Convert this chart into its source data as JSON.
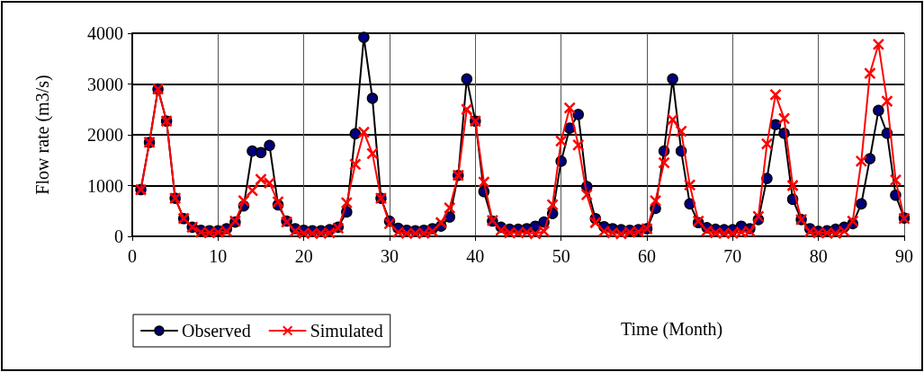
{
  "chart_data": {
    "type": "line",
    "xlabel": "Time (Month)",
    "ylabel": "Flow rate (m3/s)",
    "x": [
      1,
      2,
      3,
      4,
      5,
      6,
      7,
      8,
      9,
      10,
      11,
      12,
      13,
      14,
      15,
      16,
      17,
      18,
      19,
      20,
      21,
      22,
      23,
      24,
      25,
      26,
      27,
      28,
      29,
      30,
      31,
      32,
      33,
      34,
      35,
      36,
      37,
      38,
      39,
      40,
      41,
      42,
      43,
      44,
      45,
      46,
      47,
      48,
      49,
      50,
      51,
      52,
      53,
      54,
      55,
      56,
      57,
      58,
      59,
      60,
      61,
      62,
      63,
      64,
      65,
      66,
      67,
      68,
      69,
      70,
      71,
      72,
      73,
      74,
      75,
      76,
      77,
      78,
      79,
      80,
      81,
      82,
      83,
      84,
      85,
      86,
      87,
      88,
      89,
      90
    ],
    "series": [
      {
        "name": "Observed",
        "color": "#000080",
        "marker": "circle",
        "values": [
          920,
          1850,
          2900,
          2270,
          750,
          350,
          180,
          120,
          110,
          110,
          150,
          280,
          600,
          1680,
          1650,
          1790,
          620,
          300,
          150,
          120,
          110,
          110,
          130,
          180,
          480,
          2020,
          3920,
          2720,
          750,
          300,
          160,
          120,
          110,
          120,
          150,
          200,
          380,
          1200,
          3100,
          2270,
          880,
          300,
          180,
          140,
          140,
          150,
          200,
          280,
          450,
          1480,
          2130,
          2400,
          980,
          350,
          190,
          150,
          130,
          120,
          130,
          150,
          550,
          1680,
          3100,
          1680,
          640,
          270,
          170,
          140,
          130,
          130,
          200,
          150,
          330,
          1140,
          2200,
          2030,
          730,
          330,
          150,
          100,
          110,
          140,
          180,
          250,
          640,
          1530,
          2480,
          2030,
          810,
          360
        ]
      },
      {
        "name": "Simulated",
        "color": "#ff0000",
        "marker": "cross",
        "values": [
          920,
          1850,
          2900,
          2270,
          750,
          350,
          180,
          80,
          70,
          80,
          100,
          300,
          700,
          900,
          1120,
          1050,
          680,
          280,
          100,
          60,
          60,
          60,
          70,
          160,
          660,
          1420,
          2050,
          1630,
          750,
          250,
          80,
          60,
          60,
          60,
          100,
          270,
          560,
          1200,
          2500,
          2270,
          1070,
          310,
          120,
          70,
          70,
          80,
          50,
          100,
          620,
          1880,
          2530,
          1800,
          820,
          270,
          100,
          70,
          50,
          80,
          90,
          150,
          700,
          1450,
          2300,
          2070,
          1010,
          300,
          110,
          70,
          60,
          60,
          80,
          100,
          390,
          1820,
          2790,
          2320,
          1000,
          330,
          90,
          70,
          70,
          60,
          100,
          300,
          1480,
          3210,
          3780,
          2660,
          1110,
          350
        ]
      }
    ],
    "xlim": [
      0,
      90
    ],
    "xticks": [
      0,
      10,
      20,
      30,
      40,
      50,
      60,
      70,
      80,
      90
    ],
    "ylim": [
      0,
      4000
    ],
    "yticks": [
      0,
      1000,
      2000,
      3000,
      4000
    ],
    "grid": true,
    "legend": "bottom left"
  }
}
